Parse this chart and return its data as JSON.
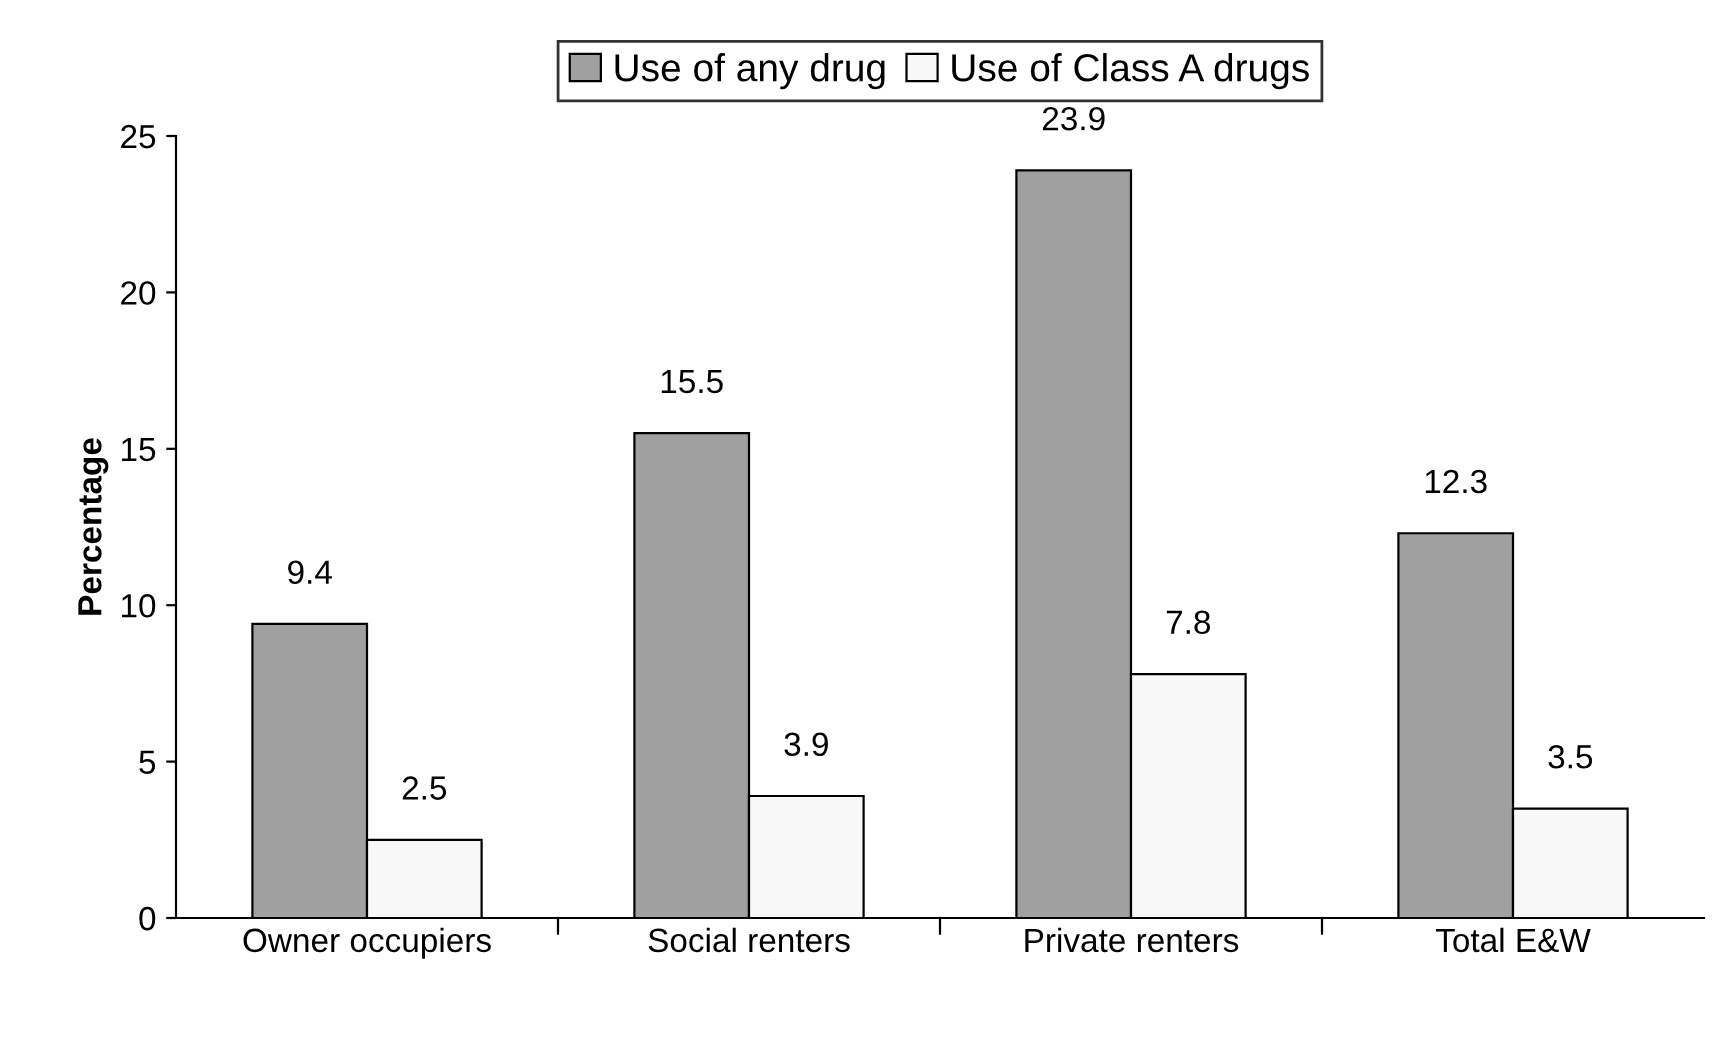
{
  "chart_data": {
    "type": "bar",
    "ylabel": "Percentage",
    "categories": [
      "Owner occupiers",
      "Social renters",
      "Private renters",
      "Total E&W"
    ],
    "series": [
      {
        "name": "Use of any drug",
        "color": "#a0a0a0",
        "values": [
          9.4,
          15.5,
          23.9,
          12.3
        ]
      },
      {
        "name": "Use of Class A drugs",
        "color": "#f8f8f8",
        "values": [
          2.5,
          3.9,
          7.8,
          3.5
        ]
      }
    ],
    "ylim": [
      0,
      25
    ],
    "yticks": [
      0,
      5,
      10,
      15,
      20,
      25
    ],
    "grid": false,
    "legend": "top",
    "data_labels": true
  }
}
